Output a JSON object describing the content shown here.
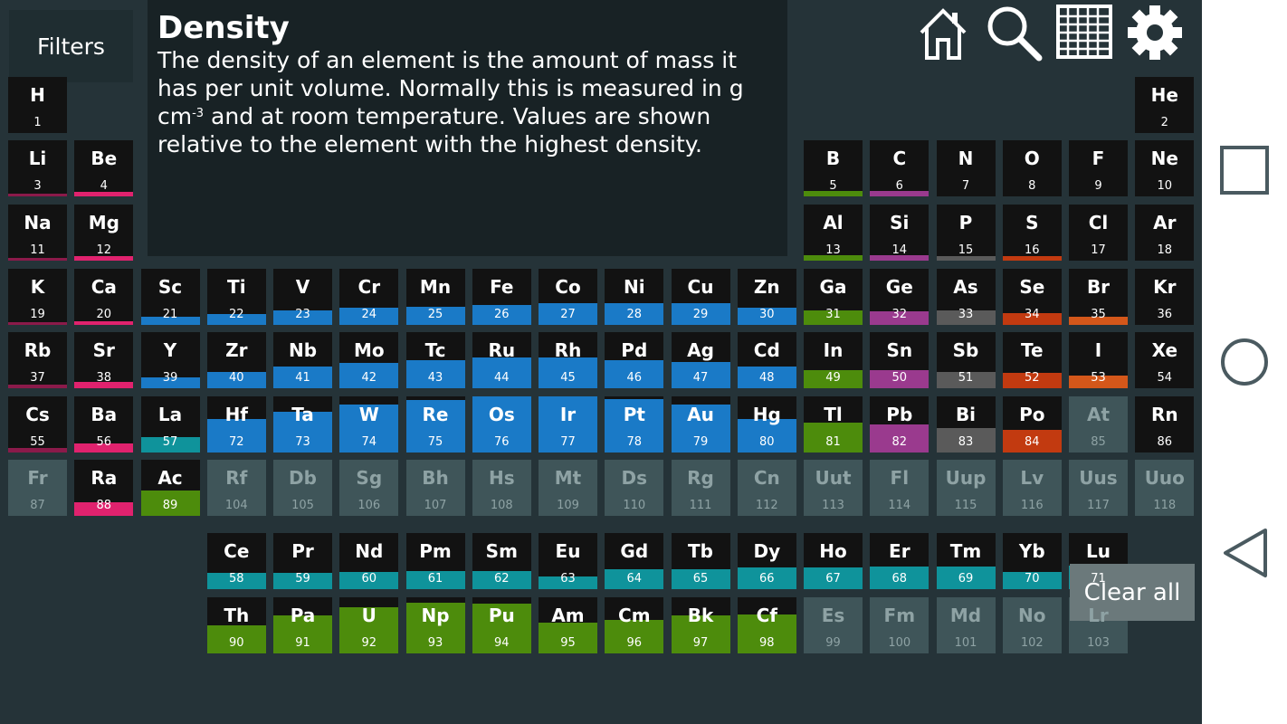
{
  "filters_label": "Filters",
  "info": {
    "title": "Density",
    "desc_before": "The density of an element is the amount of mass it has per unit volume. Normally this is measured in g cm",
    "desc_sup": "-3",
    "desc_after": " and at room temperature. Values are shown relative to the element with the highest density."
  },
  "clear_all_label": "Clear all",
  "toolbar_icons": [
    "home-icon",
    "search-icon",
    "grid-icon",
    "gear-icon"
  ],
  "navbar_icons": [
    "square-icon",
    "circle-icon",
    "back-triangle-icon"
  ],
  "category_colors": {
    "alkali": "#8b1a4a",
    "alkaline": "#e0226e",
    "transition": "#1a7ac7",
    "lanthanide": "#0f939b",
    "actinide": "#4d8c0c",
    "post-transition": "#4d8c0c",
    "metalloid": "#9a3a8e",
    "polyatomic": "#5a5a5a",
    "diatomic": "#c23a10",
    "halogen": "#d4571a",
    "noble": "#121212",
    "none": "#121212"
  },
  "elements": [
    {
      "s": "H",
      "n": 1,
      "c": "none",
      "d": 0.0
    },
    {
      "s": "He",
      "n": 2,
      "c": "noble",
      "d": 0.0
    },
    {
      "s": "Li",
      "n": 3,
      "c": "alkali",
      "d": 0.03
    },
    {
      "s": "Be",
      "n": 4,
      "c": "alkaline",
      "d": 0.08
    },
    {
      "s": "B",
      "n": 5,
      "c": "post-transition",
      "d": 0.1
    },
    {
      "s": "C",
      "n": 6,
      "c": "metalloid",
      "d": 0.1
    },
    {
      "s": "N",
      "n": 7,
      "c": "none",
      "d": 0.0
    },
    {
      "s": "O",
      "n": 8,
      "c": "none",
      "d": 0.0
    },
    {
      "s": "F",
      "n": 9,
      "c": "none",
      "d": 0.0
    },
    {
      "s": "Ne",
      "n": 10,
      "c": "noble",
      "d": 0.0
    },
    {
      "s": "Na",
      "n": 11,
      "c": "alkali",
      "d": 0.04
    },
    {
      "s": "Mg",
      "n": 12,
      "c": "alkaline",
      "d": 0.08
    },
    {
      "s": "Al",
      "n": 13,
      "c": "post-transition",
      "d": 0.1
    },
    {
      "s": "Si",
      "n": 14,
      "c": "metalloid",
      "d": 0.1
    },
    {
      "s": "P",
      "n": 15,
      "c": "polyatomic",
      "d": 0.08
    },
    {
      "s": "S",
      "n": 16,
      "c": "diatomic",
      "d": 0.08
    },
    {
      "s": "Cl",
      "n": 17,
      "c": "none",
      "d": 0.0
    },
    {
      "s": "Ar",
      "n": 18,
      "c": "noble",
      "d": 0.0
    },
    {
      "s": "K",
      "n": 19,
      "c": "alkali",
      "d": 0.04
    },
    {
      "s": "Ca",
      "n": 20,
      "c": "alkaline",
      "d": 0.07
    },
    {
      "s": "Sc",
      "n": 21,
      "c": "transition",
      "d": 0.14
    },
    {
      "s": "Ti",
      "n": 22,
      "c": "transition",
      "d": 0.2
    },
    {
      "s": "V",
      "n": 23,
      "c": "transition",
      "d": 0.26
    },
    {
      "s": "Cr",
      "n": 24,
      "c": "transition",
      "d": 0.31
    },
    {
      "s": "Mn",
      "n": 25,
      "c": "transition",
      "d": 0.33
    },
    {
      "s": "Fe",
      "n": 26,
      "c": "transition",
      "d": 0.35
    },
    {
      "s": "Co",
      "n": 27,
      "c": "transition",
      "d": 0.39
    },
    {
      "s": "Ni",
      "n": 28,
      "c": "transition",
      "d": 0.39
    },
    {
      "s": "Cu",
      "n": 29,
      "c": "transition",
      "d": 0.39
    },
    {
      "s": "Zn",
      "n": 30,
      "c": "transition",
      "d": 0.31
    },
    {
      "s": "Ga",
      "n": 31,
      "c": "post-transition",
      "d": 0.26
    },
    {
      "s": "Ge",
      "n": 32,
      "c": "metalloid",
      "d": 0.24
    },
    {
      "s": "As",
      "n": 33,
      "c": "polyatomic",
      "d": 0.25
    },
    {
      "s": "Se",
      "n": 34,
      "c": "diatomic",
      "d": 0.21
    },
    {
      "s": "Br",
      "n": 35,
      "c": "halogen",
      "d": 0.14
    },
    {
      "s": "Kr",
      "n": 36,
      "c": "noble",
      "d": 0.0
    },
    {
      "s": "Rb",
      "n": 37,
      "c": "alkali",
      "d": 0.06
    },
    {
      "s": "Sr",
      "n": 38,
      "c": "alkaline",
      "d": 0.11
    },
    {
      "s": "Y",
      "n": 39,
      "c": "transition",
      "d": 0.2
    },
    {
      "s": "Zr",
      "n": 40,
      "c": "transition",
      "d": 0.29
    },
    {
      "s": "Nb",
      "n": 41,
      "c": "transition",
      "d": 0.38
    },
    {
      "s": "Mo",
      "n": 42,
      "c": "transition",
      "d": 0.45
    },
    {
      "s": "Tc",
      "n": 43,
      "c": "transition",
      "d": 0.5
    },
    {
      "s": "Ru",
      "n": 44,
      "c": "transition",
      "d": 0.55
    },
    {
      "s": "Rh",
      "n": 45,
      "c": "transition",
      "d": 0.55
    },
    {
      "s": "Pd",
      "n": 46,
      "c": "transition",
      "d": 0.5
    },
    {
      "s": "Ag",
      "n": 47,
      "c": "transition",
      "d": 0.47
    },
    {
      "s": "Cd",
      "n": 48,
      "c": "transition",
      "d": 0.38
    },
    {
      "s": "In",
      "n": 49,
      "c": "post-transition",
      "d": 0.32
    },
    {
      "s": "Sn",
      "n": 50,
      "c": "metalloid",
      "d": 0.32
    },
    {
      "s": "Sb",
      "n": 51,
      "c": "polyatomic",
      "d": 0.29
    },
    {
      "s": "Te",
      "n": 52,
      "c": "diatomic",
      "d": 0.27
    },
    {
      "s": "I",
      "n": 53,
      "c": "halogen",
      "d": 0.22
    },
    {
      "s": "Xe",
      "n": 54,
      "c": "noble",
      "d": 0.0
    },
    {
      "s": "Cs",
      "n": 55,
      "c": "alkali",
      "d": 0.08
    },
    {
      "s": "Ba",
      "n": 56,
      "c": "alkaline",
      "d": 0.16
    },
    {
      "s": "La",
      "n": 57,
      "c": "lanthanide",
      "d": 0.27
    },
    {
      "s": "Hf",
      "n": 72,
      "c": "transition",
      "d": 0.6
    },
    {
      "s": "Ta",
      "n": 73,
      "c": "transition",
      "d": 0.73
    },
    {
      "s": "W",
      "n": 74,
      "c": "transition",
      "d": 0.85
    },
    {
      "s": "Re",
      "n": 75,
      "c": "transition",
      "d": 0.94
    },
    {
      "s": "Os",
      "n": 76,
      "c": "transition",
      "d": 1.0
    },
    {
      "s": "Ir",
      "n": 77,
      "c": "transition",
      "d": 1.0
    },
    {
      "s": "Pt",
      "n": 78,
      "c": "transition",
      "d": 0.95
    },
    {
      "s": "Au",
      "n": 79,
      "c": "transition",
      "d": 0.85
    },
    {
      "s": "Hg",
      "n": 80,
      "c": "transition",
      "d": 0.6
    },
    {
      "s": "Tl",
      "n": 81,
      "c": "post-transition",
      "d": 0.53
    },
    {
      "s": "Pb",
      "n": 82,
      "c": "metalloid",
      "d": 0.5
    },
    {
      "s": "Bi",
      "n": 83,
      "c": "polyatomic",
      "d": 0.44
    },
    {
      "s": "Po",
      "n": 84,
      "c": "diatomic",
      "d": 0.41
    },
    {
      "s": "At",
      "n": 85,
      "c": "inactive",
      "d": 0.0
    },
    {
      "s": "Rn",
      "n": 86,
      "c": "noble",
      "d": 0.0
    },
    {
      "s": "Fr",
      "n": 87,
      "c": "inactive",
      "d": 0.0
    },
    {
      "s": "Ra",
      "n": 88,
      "c": "alkaline",
      "d": 0.24
    },
    {
      "s": "Ac",
      "n": 89,
      "c": "actinide",
      "d": 0.45
    },
    {
      "s": "Rf",
      "n": 104,
      "c": "inactive",
      "d": 0.0
    },
    {
      "s": "Db",
      "n": 105,
      "c": "inactive",
      "d": 0.0
    },
    {
      "s": "Sg",
      "n": 106,
      "c": "inactive",
      "d": 0.0
    },
    {
      "s": "Bh",
      "n": 107,
      "c": "inactive",
      "d": 0.0
    },
    {
      "s": "Hs",
      "n": 108,
      "c": "inactive",
      "d": 0.0
    },
    {
      "s": "Mt",
      "n": 109,
      "c": "inactive",
      "d": 0.0
    },
    {
      "s": "Ds",
      "n": 110,
      "c": "inactive",
      "d": 0.0
    },
    {
      "s": "Rg",
      "n": 111,
      "c": "inactive",
      "d": 0.0
    },
    {
      "s": "Cn",
      "n": 112,
      "c": "inactive",
      "d": 0.0
    },
    {
      "s": "Uut",
      "n": 113,
      "c": "inactive",
      "d": 0.0
    },
    {
      "s": "Fl",
      "n": 114,
      "c": "inactive",
      "d": 0.0
    },
    {
      "s": "Uup",
      "n": 115,
      "c": "inactive",
      "d": 0.0
    },
    {
      "s": "Lv",
      "n": 116,
      "c": "inactive",
      "d": 0.0
    },
    {
      "s": "Uus",
      "n": 117,
      "c": "inactive",
      "d": 0.0
    },
    {
      "s": "Uuo",
      "n": 118,
      "c": "inactive",
      "d": 0.0
    },
    {
      "s": "Ce",
      "n": 58,
      "c": "lanthanide",
      "d": 0.29
    },
    {
      "s": "Pr",
      "n": 59,
      "c": "lanthanide",
      "d": 0.29
    },
    {
      "s": "Nd",
      "n": 60,
      "c": "lanthanide",
      "d": 0.31
    },
    {
      "s": "Pm",
      "n": 61,
      "c": "lanthanide",
      "d": 0.32
    },
    {
      "s": "Sm",
      "n": 62,
      "c": "lanthanide",
      "d": 0.32
    },
    {
      "s": "Eu",
      "n": 63,
      "c": "lanthanide",
      "d": 0.23
    },
    {
      "s": "Gd",
      "n": 64,
      "c": "lanthanide",
      "d": 0.35
    },
    {
      "s": "Tb",
      "n": 65,
      "c": "lanthanide",
      "d": 0.36
    },
    {
      "s": "Dy",
      "n": 66,
      "c": "lanthanide",
      "d": 0.38
    },
    {
      "s": "Ho",
      "n": 67,
      "c": "lanthanide",
      "d": 0.38
    },
    {
      "s": "Er",
      "n": 68,
      "c": "lanthanide",
      "d": 0.4
    },
    {
      "s": "Tm",
      "n": 69,
      "c": "lanthanide",
      "d": 0.4
    },
    {
      "s": "Yb",
      "n": 70,
      "c": "lanthanide",
      "d": 0.3
    },
    {
      "s": "Lu",
      "n": 71,
      "c": "lanthanide",
      "d": 0.42
    },
    {
      "s": "Th",
      "n": 90,
      "c": "actinide",
      "d": 0.5
    },
    {
      "s": "Pa",
      "n": 91,
      "c": "actinide",
      "d": 0.67
    },
    {
      "s": "U",
      "n": 92,
      "c": "actinide",
      "d": 0.83
    },
    {
      "s": "Np",
      "n": 93,
      "c": "actinide",
      "d": 0.9
    },
    {
      "s": "Pu",
      "n": 94,
      "c": "actinide",
      "d": 0.88
    },
    {
      "s": "Am",
      "n": 95,
      "c": "actinide",
      "d": 0.55
    },
    {
      "s": "Cm",
      "n": 96,
      "c": "actinide",
      "d": 0.6
    },
    {
      "s": "Bk",
      "n": 97,
      "c": "actinide",
      "d": 0.67
    },
    {
      "s": "Cf",
      "n": 98,
      "c": "actinide",
      "d": 0.7
    },
    {
      "s": "Es",
      "n": 99,
      "c": "inactive",
      "d": 0.0
    },
    {
      "s": "Fm",
      "n": 100,
      "c": "inactive",
      "d": 0.0
    },
    {
      "s": "Md",
      "n": 101,
      "c": "inactive",
      "d": 0.0
    },
    {
      "s": "No",
      "n": 102,
      "c": "inactive",
      "d": 0.0
    },
    {
      "s": "Lr",
      "n": 103,
      "c": "inactive",
      "d": 0.0
    }
  ]
}
